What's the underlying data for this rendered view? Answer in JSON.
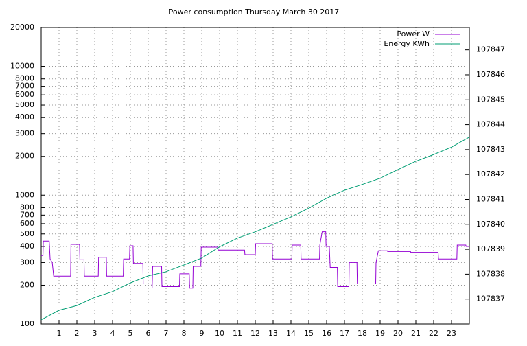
{
  "chart_data": {
    "type": "line",
    "title": "Power consumption Thursday March 30 2017",
    "log_y": true,
    "grid": true,
    "legend": "top-right",
    "xlim": [
      0,
      24
    ],
    "xticks": [
      1,
      2,
      3,
      4,
      5,
      6,
      7,
      8,
      9,
      10,
      11,
      12,
      13,
      14,
      15,
      16,
      17,
      18,
      19,
      20,
      21,
      22,
      23
    ],
    "ylim": [
      100,
      20000
    ],
    "yticks": [
      100,
      200,
      300,
      400,
      500,
      600,
      700,
      800,
      1000,
      2000,
      3000,
      4000,
      5000,
      6000,
      7000,
      8000,
      10000,
      20000
    ],
    "y2lim": [
      107836,
      107847.9
    ],
    "y2ticks": [
      107837,
      107838,
      107839,
      107840,
      107841,
      107842,
      107843,
      107844,
      107845,
      107846,
      107847
    ],
    "series": [
      {
        "name": "Power W",
        "color": "#9400d3",
        "x": [
          0,
          0.1,
          0.12,
          0.45,
          0.5,
          0.62,
          0.7,
          1.65,
          1.67,
          2.15,
          2.17,
          2.4,
          2.42,
          3.2,
          3.22,
          3.65,
          3.67,
          4.6,
          4.62,
          4.95,
          4.97,
          5.15,
          5.17,
          5.7,
          5.72,
          6.2,
          6.22,
          6.25,
          6.75,
          6.77,
          7.75,
          7.77,
          8.3,
          8.32,
          8.5,
          8.52,
          8.95,
          8.97,
          9.9,
          9.92,
          11.4,
          11.42,
          12,
          12.02,
          12.95,
          12.97,
          14.05,
          14.07,
          14.55,
          14.57,
          15.6,
          15.62,
          15.75,
          15.95,
          15.97,
          16.15,
          16.2,
          16.6,
          16.62,
          17.25,
          17.27,
          17.7,
          17.72,
          18.75,
          18.77,
          18.9,
          19.4,
          19.42,
          20.7,
          20.72,
          22.25,
          22.27,
          23.3,
          23.32,
          23.8,
          23.82,
          24
        ],
        "values": [
          340,
          340,
          440,
          440,
          320,
          300,
          235,
          235,
          415,
          415,
          315,
          315,
          235,
          235,
          330,
          330,
          235,
          235,
          320,
          320,
          405,
          405,
          295,
          295,
          205,
          205,
          190,
          280,
          280,
          195,
          195,
          245,
          245,
          190,
          190,
          280,
          280,
          395,
          395,
          375,
          375,
          345,
          345,
          420,
          420,
          320,
          320,
          410,
          410,
          320,
          320,
          410,
          520,
          520,
          400,
          400,
          275,
          275,
          195,
          195,
          300,
          300,
          205,
          205,
          300,
          370,
          370,
          365,
          365,
          360,
          360,
          320,
          320,
          410,
          410,
          400,
          400
        ]
      },
      {
        "name": "Energy KWh",
        "color": "#009e73",
        "axis": "y2",
        "x": [
          0,
          1,
          2,
          3,
          4,
          5,
          6,
          7,
          8,
          9,
          10,
          11,
          12,
          13,
          14,
          15,
          16,
          17,
          18,
          19,
          20,
          21,
          22,
          23,
          24
        ],
        "values": [
          107836.17,
          107836.55,
          107836.74,
          107837.07,
          107837.3,
          107837.65,
          107837.93,
          107838.1,
          107838.37,
          107838.65,
          107839.1,
          107839.45,
          107839.7,
          107840.0,
          107840.3,
          107840.65,
          107841.05,
          107841.37,
          107841.6,
          107841.85,
          107842.2,
          107842.53,
          107842.8,
          107843.1,
          107843.5
        ]
      }
    ]
  }
}
